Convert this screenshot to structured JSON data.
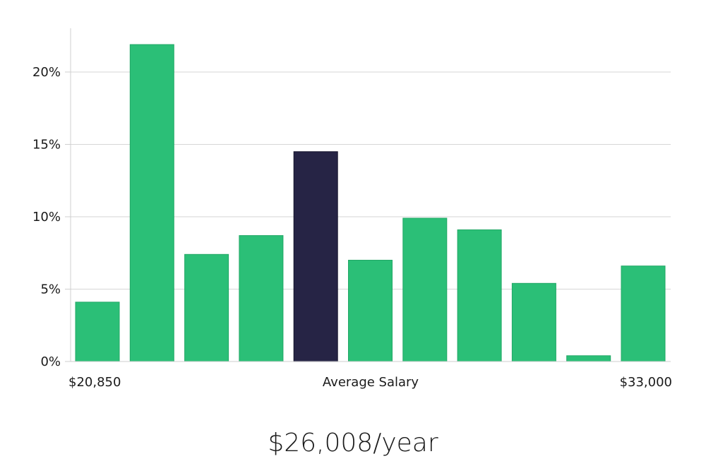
{
  "chart_data": {
    "type": "bar",
    "values": [
      4.1,
      21.9,
      7.4,
      8.7,
      14.5,
      7.0,
      9.9,
      9.1,
      5.4,
      0.4,
      6.6
    ],
    "highlight_index": 4,
    "ylim": [
      0,
      23
    ],
    "yticks": [
      0,
      5,
      10,
      15,
      20
    ],
    "ytick_labels": [
      "0%",
      "5%",
      "10%",
      "15%",
      "20%"
    ],
    "x_labels": {
      "left": "$20,850",
      "center": "Average Salary",
      "right": "$33,000"
    },
    "grid": true,
    "colors": {
      "bar": "#2bbf77",
      "highlight": "#262445",
      "grid": "#d6d6d6",
      "axis": "#cfcfcf"
    }
  },
  "salary_label": "$26,008/year"
}
